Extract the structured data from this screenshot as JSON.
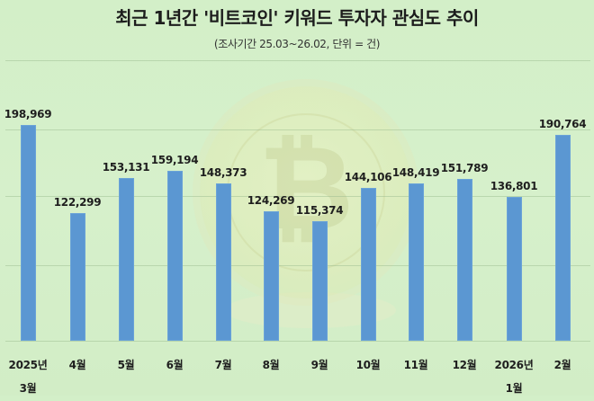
{
  "title": "최근 1년간 '비트코인' 키워드 투자자 관심도 추이",
  "subtitle": "(조사기간 25.03~26.02, 단위 = 건)",
  "background_icon": "bitcoin-coin-icon",
  "colors": {
    "bar": "#5b97d2",
    "background": "#d4efc9"
  },
  "chart_data": {
    "type": "bar",
    "title": "최근 1년간 '비트코인' 키워드 투자자 관심도 추이",
    "subtitle": "(조사기간 25.03~26.02, 단위 = 건)",
    "xlabel": "",
    "ylabel": "",
    "categories": [
      "2025년 3월",
      "4월",
      "5월",
      "6월",
      "7월",
      "8월",
      "9월",
      "10월",
      "11월",
      "12월",
      "2026년 1월",
      "2월"
    ],
    "values": [
      198969,
      122299,
      153131,
      159194,
      148373,
      124269,
      115374,
      144106,
      148419,
      151789,
      136801,
      190764
    ],
    "value_labels": [
      "198,969",
      "122,299",
      "153,131",
      "159,194",
      "148,373",
      "124,269",
      "115,374",
      "144,106",
      "148,419",
      "151,789",
      "136,801",
      "190,764"
    ],
    "grid": true,
    "legend": null,
    "y_axis_labels_visible": false
  },
  "xlabels": [
    {
      "line1": "2025년",
      "line2": "3월"
    },
    {
      "line1": "4월",
      "line2": ""
    },
    {
      "line1": "5월",
      "line2": ""
    },
    {
      "line1": "6월",
      "line2": ""
    },
    {
      "line1": "7월",
      "line2": ""
    },
    {
      "line1": "8월",
      "line2": ""
    },
    {
      "line1": "9월",
      "line2": ""
    },
    {
      "line1": "10월",
      "line2": ""
    },
    {
      "line1": "11월",
      "line2": ""
    },
    {
      "line1": "12월",
      "line2": ""
    },
    {
      "line1": "2026년",
      "line2": "1월"
    },
    {
      "line1": "2월",
      "line2": ""
    }
  ]
}
